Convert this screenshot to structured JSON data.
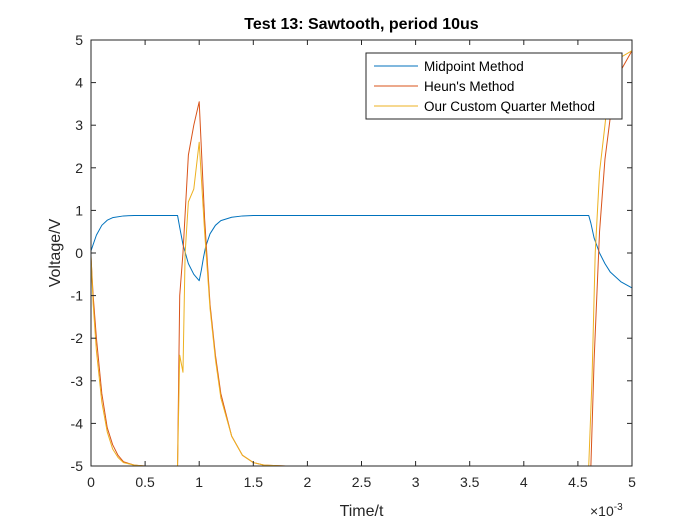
{
  "chart_data": {
    "type": "line",
    "title": "Test 13: Sawtooth, period 10us",
    "xlabel": "Time/t",
    "ylabel": "Voltage/V",
    "x_multiplier": "×10",
    "x_multiplier_exponent": "-3",
    "xlim": [
      0,
      0.005
    ],
    "ylim": [
      -5,
      5
    ],
    "xticks": [
      0,
      0.0005,
      0.001,
      0.0015,
      0.002,
      0.0025,
      0.003,
      0.0035,
      0.004,
      0.0045,
      0.005
    ],
    "xtick_labels": [
      "0",
      "0.5",
      "1",
      "1.5",
      "2",
      "2.5",
      "3",
      "3.5",
      "4",
      "4.5",
      "5"
    ],
    "yticks": [
      -5,
      -4,
      -3,
      -2,
      -1,
      0,
      1,
      2,
      3,
      4,
      5
    ],
    "ytick_labels": [
      "-5",
      "-4",
      "-3",
      "-2",
      "-1",
      "0",
      "1",
      "2",
      "3",
      "4",
      "5"
    ],
    "grid": false,
    "legend_position": "top-right",
    "series": [
      {
        "name": "Midpoint Method",
        "color": "#0072BD",
        "x": [
          0,
          2e-05,
          5e-05,
          0.0001,
          0.00015,
          0.0002,
          0.0003,
          0.0004,
          0.0005,
          0.0006,
          0.0007,
          0.0008,
          0.00082,
          0.00085,
          0.0009,
          0.00095,
          0.001,
          0.00102,
          0.00104,
          0.00106,
          0.0011,
          0.00115,
          0.0012,
          0.0013,
          0.0014,
          0.0015,
          0.0016,
          0.0018,
          0.002,
          0.0025,
          0.003,
          0.0035,
          0.004,
          0.0045,
          0.0046,
          0.00462,
          0.00465,
          0.0047,
          0.00475,
          0.0048,
          0.0049,
          0.005
        ],
        "y": [
          0.05,
          0.2,
          0.42,
          0.65,
          0.77,
          0.83,
          0.87,
          0.88,
          0.88,
          0.88,
          0.88,
          0.88,
          0.6,
          0.2,
          -0.25,
          -0.5,
          -0.65,
          -0.4,
          -0.1,
          0.15,
          0.45,
          0.65,
          0.76,
          0.84,
          0.87,
          0.88,
          0.88,
          0.88,
          0.88,
          0.88,
          0.88,
          0.88,
          0.88,
          0.88,
          0.88,
          0.7,
          0.35,
          0.0,
          -0.25,
          -0.45,
          -0.68,
          -0.82
        ]
      },
      {
        "name": "Heun's Method",
        "color": "#D95319",
        "x": [
          0,
          2e-05,
          5e-05,
          0.0001,
          0.00015,
          0.0002,
          0.00025,
          0.0003,
          0.0004,
          0.0005,
          0.0006,
          0.0007,
          0.0008,
          0.00082,
          0.00085,
          0.0009,
          0.00095,
          0.001,
          0.00105,
          0.0011,
          0.00115,
          0.0012,
          0.0013,
          0.0014,
          0.0015,
          0.0016,
          0.0018,
          0.002,
          0.0025,
          0.003,
          0.0035,
          0.004,
          0.0045,
          0.0046,
          0.00462,
          0.00465,
          0.0047,
          0.00475,
          0.0048,
          0.0049,
          0.005
        ],
        "y": [
          -0.1,
          -1.0,
          -2.0,
          -3.3,
          -4.1,
          -4.5,
          -4.75,
          -4.9,
          -4.98,
          -5.0,
          -5.0,
          -5.0,
          -5.0,
          -1.0,
          0.0,
          2.3,
          3.0,
          3.55,
          0.8,
          -1.2,
          -2.4,
          -3.3,
          -4.3,
          -4.75,
          -4.92,
          -4.98,
          -5.0,
          -5.0,
          -5.0,
          -5.0,
          -5.0,
          -5.0,
          -5.0,
          -5.0,
          -5.0,
          -2.5,
          0.5,
          2.2,
          3.2,
          4.3,
          4.75
        ]
      },
      {
        "name": "Our Custom Quarter Method",
        "color": "#EDB120",
        "x": [
          0,
          2e-05,
          5e-05,
          0.0001,
          0.00015,
          0.0002,
          0.00025,
          0.0003,
          0.0004,
          0.0005,
          0.0006,
          0.0007,
          0.0008,
          0.00082,
          0.00085,
          0.00087,
          0.0009,
          0.00095,
          0.001,
          0.00105,
          0.0011,
          0.00115,
          0.0012,
          0.0013,
          0.0014,
          0.0015,
          0.0016,
          0.0018,
          0.002,
          0.0025,
          0.003,
          0.0035,
          0.004,
          0.0045,
          0.0046,
          0.00463,
          0.00466,
          0.0047,
          0.00475,
          0.0048,
          0.0049,
          0.005
        ],
        "y": [
          -0.05,
          -1.2,
          -2.3,
          -3.5,
          -4.2,
          -4.6,
          -4.8,
          -4.92,
          -4.98,
          -5.0,
          -5.0,
          -5.0,
          -5.0,
          -2.4,
          -2.8,
          0.0,
          1.2,
          1.5,
          2.6,
          0.5,
          -1.3,
          -2.5,
          -3.4,
          -4.3,
          -4.75,
          -4.92,
          -4.98,
          -5.0,
          -5.0,
          -5.0,
          -5.0,
          -5.0,
          -5.0,
          -5.0,
          -5.0,
          -3.0,
          0.0,
          1.9,
          3.0,
          4.2,
          4.6,
          4.75
        ]
      }
    ]
  }
}
